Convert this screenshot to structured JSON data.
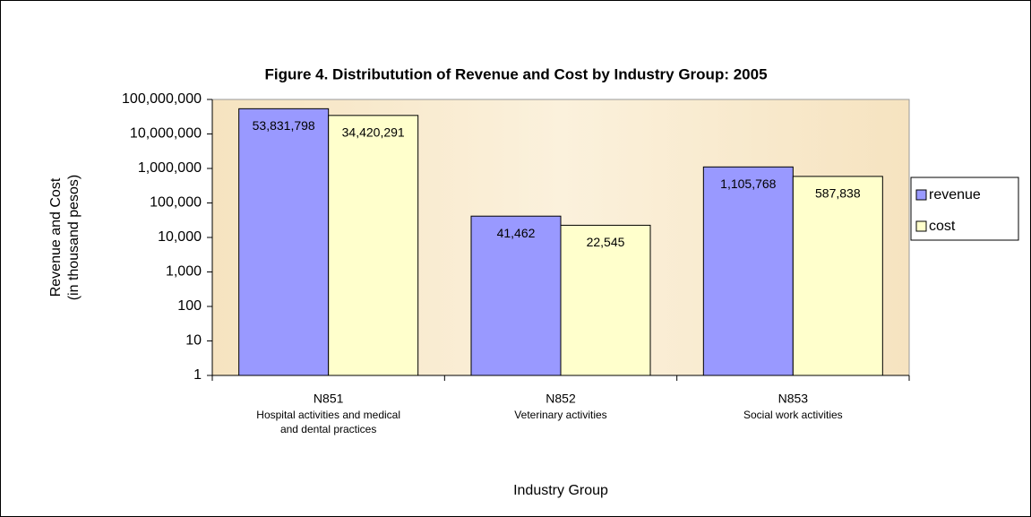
{
  "chart_data": {
    "type": "bar",
    "title": "Figure 4.  Distributution of Revenue and Cost by Industry Group: 2005",
    "ylabel": [
      "Revenue and Cost",
      "(in thousand pesos)"
    ],
    "xlabel": "Industry Group",
    "categories": [
      "N851",
      "N852",
      "N853"
    ],
    "category_descriptions": [
      "Hospital activities and medical and dental practices",
      "Veterinary activities",
      "Social work activities"
    ],
    "series": [
      {
        "name": "revenue",
        "color": "#9999ff",
        "values": [
          53831798,
          41462,
          1105768
        ],
        "value_labels": [
          "53,831,798",
          "41,462",
          "1,105,768"
        ]
      },
      {
        "name": "cost",
        "color": "#ffffcc",
        "values": [
          34420291,
          22545,
          587838
        ],
        "value_labels": [
          "34,420,291",
          "22,545",
          "587,838"
        ]
      }
    ],
    "log_scale": true,
    "ylim": [
      1,
      100000000
    ],
    "yticks": [
      1,
      10,
      100,
      {
        "value": 1000,
        "label": "1,000"
      },
      {
        "value": 10000,
        "label": "10,000"
      },
      {
        "value": 100000,
        "label": "100,000"
      },
      {
        "value": 1000000,
        "label": "1,000,000"
      },
      {
        "value": 10000000,
        "label": "10,000,000"
      },
      {
        "value": 100000000,
        "label": "100,000,000"
      }
    ],
    "legend": "right"
  }
}
